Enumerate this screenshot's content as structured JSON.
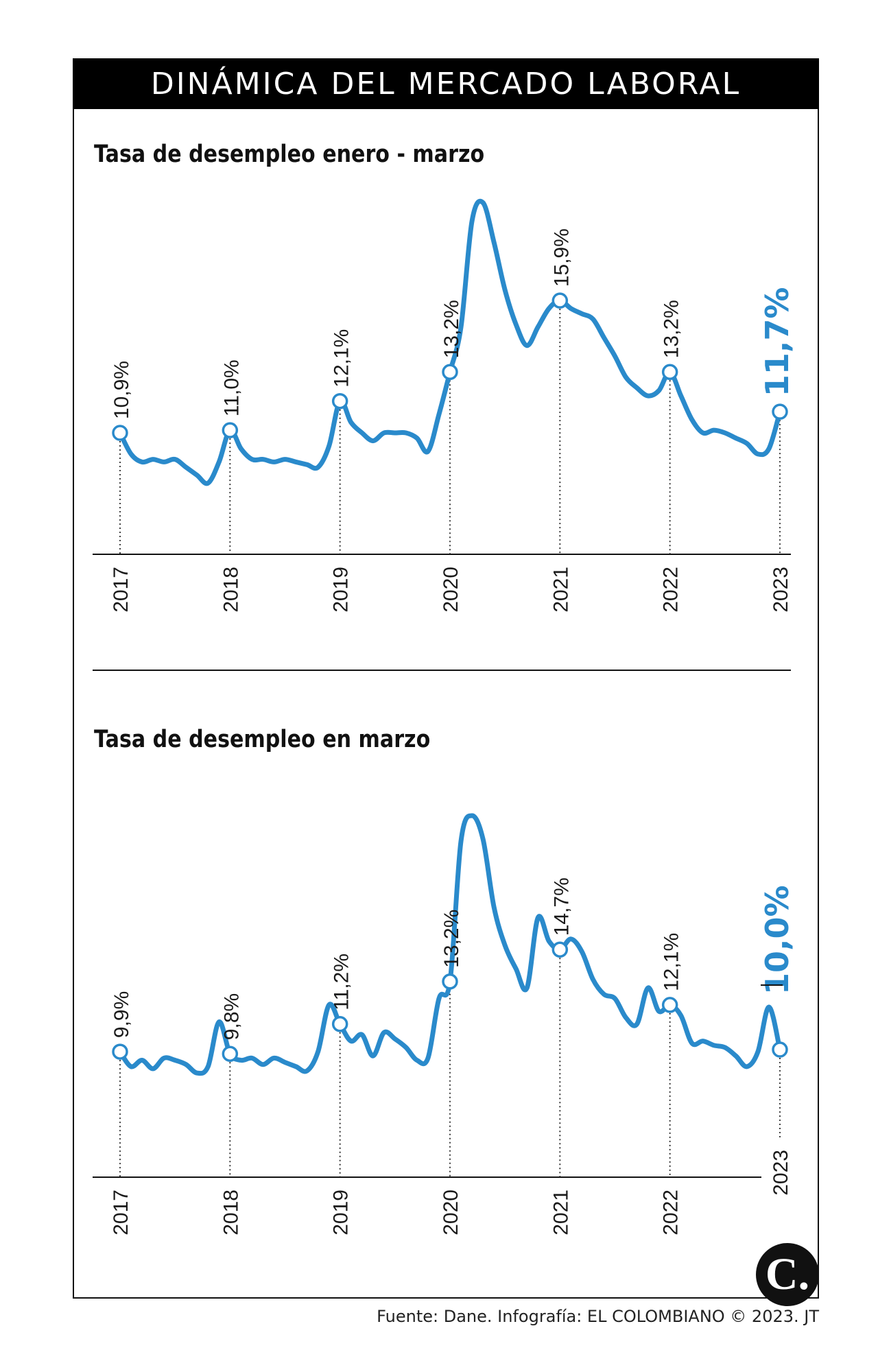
{
  "header": {
    "title": "DINÁMICA DEL MERCADO LABORAL"
  },
  "footer": {
    "source": "Fuente: Dane. Infografía: EL COLOMBIANO © 2023. JT"
  },
  "logo": {
    "text": "C."
  },
  "colors": {
    "line": "#2a8acb",
    "text": "#1a1a1a",
    "axis": "#111111"
  },
  "chart_data": [
    {
      "type": "line",
      "title": "Tasa de desempleo enero - marzo",
      "xlabel": "",
      "ylabel": "",
      "ylim": [
        6,
        20
      ],
      "grid": false,
      "years": [
        "2017",
        "2018",
        "2019",
        "2020",
        "2021",
        "2022",
        "2023"
      ],
      "labels": [
        "10,9%",
        "11,0%",
        "12,1%",
        "13,2%",
        "15,9%",
        "13,2%",
        "11,7%"
      ],
      "x": [
        0,
        0.1,
        0.2,
        0.3,
        0.4,
        0.5,
        0.6,
        0.7,
        0.8,
        0.9,
        1,
        1.1,
        1.2,
        1.3,
        1.4,
        1.5,
        1.6,
        1.7,
        1.8,
        1.9,
        2,
        2.1,
        2.2,
        2.3,
        2.4,
        2.5,
        2.6,
        2.7,
        2.8,
        2.9,
        3,
        3.1,
        3.2,
        3.3,
        3.4,
        3.5,
        3.6,
        3.7,
        3.8,
        3.9,
        4,
        4.1,
        4.2,
        4.3,
        4.4,
        4.5,
        4.6,
        4.7,
        4.8,
        4.9,
        5,
        5.1,
        5.2,
        5.3,
        5.4,
        5.5,
        5.6,
        5.7,
        5.8,
        5.9,
        6
      ],
      "values": [
        10.9,
        10.1,
        9.8,
        9.9,
        9.8,
        9.9,
        9.6,
        9.3,
        9.0,
        9.8,
        11.0,
        10.3,
        9.9,
        9.9,
        9.8,
        9.9,
        9.8,
        9.7,
        9.6,
        10.4,
        12.1,
        11.3,
        10.9,
        10.6,
        10.9,
        10.9,
        10.9,
        10.7,
        10.2,
        11.6,
        13.2,
        14.9,
        18.9,
        19.6,
        18.1,
        16.3,
        15.0,
        14.2,
        14.9,
        15.6,
        15.9,
        15.6,
        15.4,
        15.2,
        14.5,
        13.8,
        13.0,
        12.6,
        12.3,
        12.5,
        13.2,
        12.3,
        11.4,
        10.9,
        11.0,
        10.9,
        10.7,
        10.5,
        10.1,
        10.3,
        11.7
      ]
    },
    {
      "type": "line",
      "title": "Tasa de desempleo en marzo",
      "xlabel": "",
      "ylabel": "",
      "ylim": [
        4,
        22
      ],
      "grid": false,
      "years": [
        "2017",
        "2018",
        "2019",
        "2020",
        "2021",
        "2022",
        "2023"
      ],
      "labels": [
        "9,9%",
        "9,8%",
        "11,2%",
        "13,2%",
        "14,7%",
        "12,1%",
        "10,0%"
      ],
      "x": [
        0,
        0.1,
        0.2,
        0.3,
        0.4,
        0.5,
        0.6,
        0.7,
        0.8,
        0.9,
        1,
        1.1,
        1.2,
        1.3,
        1.4,
        1.5,
        1.6,
        1.7,
        1.8,
        1.9,
        2,
        2.1,
        2.2,
        2.3,
        2.4,
        2.5,
        2.6,
        2.7,
        2.8,
        2.9,
        3,
        3.1,
        3.2,
        3.3,
        3.4,
        3.5,
        3.6,
        3.7,
        3.8,
        3.9,
        4,
        4.1,
        4.2,
        4.3,
        4.4,
        4.5,
        4.6,
        4.7,
        4.8,
        4.9,
        5,
        5.1,
        5.2,
        5.3,
        5.4,
        5.5,
        5.6,
        5.7,
        5.8,
        5.9,
        6
      ],
      "values": [
        9.9,
        9.2,
        9.5,
        9.1,
        9.6,
        9.5,
        9.3,
        8.9,
        9.2,
        11.3,
        9.8,
        9.5,
        9.6,
        9.3,
        9.6,
        9.4,
        9.2,
        9.0,
        9.9,
        12.1,
        11.2,
        10.4,
        10.7,
        9.7,
        10.8,
        10.5,
        10.1,
        9.5,
        9.6,
        12.4,
        13.2,
        19.8,
        21.0,
        19.9,
        16.7,
        14.9,
        13.8,
        12.9,
        16.2,
        15.1,
        14.7,
        15.2,
        14.6,
        13.3,
        12.6,
        12.4,
        11.5,
        11.2,
        12.9,
        11.8,
        12.1,
        11.6,
        10.3,
        10.4,
        10.2,
        10.1,
        9.7,
        9.2,
        9.9,
        12.0,
        10.0
      ]
    }
  ]
}
